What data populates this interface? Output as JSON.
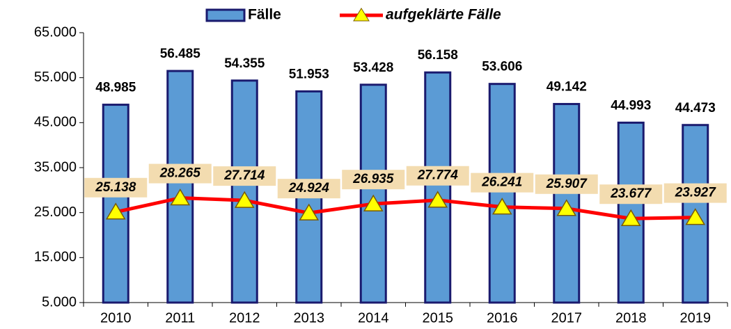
{
  "chart_data": {
    "type": "bar_line",
    "categories": [
      "2010",
      "2011",
      "2012",
      "2013",
      "2014",
      "2015",
      "2016",
      "2017",
      "2018",
      "2019"
    ],
    "series": [
      {
        "name": "Fälle",
        "type": "bar",
        "color": "#5b9bd5",
        "values": [
          48985,
          56485,
          54355,
          51953,
          53428,
          56158,
          53606,
          49142,
          44993,
          44473
        ],
        "value_labels": [
          "48.985",
          "56.485",
          "54.355",
          "51.953",
          "53.428",
          "56.158",
          "53.606",
          "49.142",
          "44.993",
          "44.473"
        ]
      },
      {
        "name": "aufgeklärte Fälle",
        "type": "line",
        "color": "#ff0000",
        "values": [
          25138,
          28265,
          27714,
          24924,
          26935,
          27774,
          26241,
          25907,
          23677,
          23927
        ],
        "value_labels": [
          "25.138",
          "28.265",
          "27.714",
          "24.924",
          "26.935",
          "27.774",
          "26.241",
          "25.907",
          "23.677",
          "23.927"
        ]
      }
    ],
    "ylim": [
      5000,
      65000
    ],
    "yticks": [
      {
        "value": 5000,
        "label": "5.000"
      },
      {
        "value": 15000,
        "label": "15.000"
      },
      {
        "value": 25000,
        "label": "25.000"
      },
      {
        "value": 35000,
        "label": "35.000"
      },
      {
        "value": 45000,
        "label": "45.000"
      },
      {
        "value": 55000,
        "label": "55.000"
      },
      {
        "value": 65000,
        "label": "65.000"
      }
    ],
    "grid": false,
    "legend": "top"
  }
}
